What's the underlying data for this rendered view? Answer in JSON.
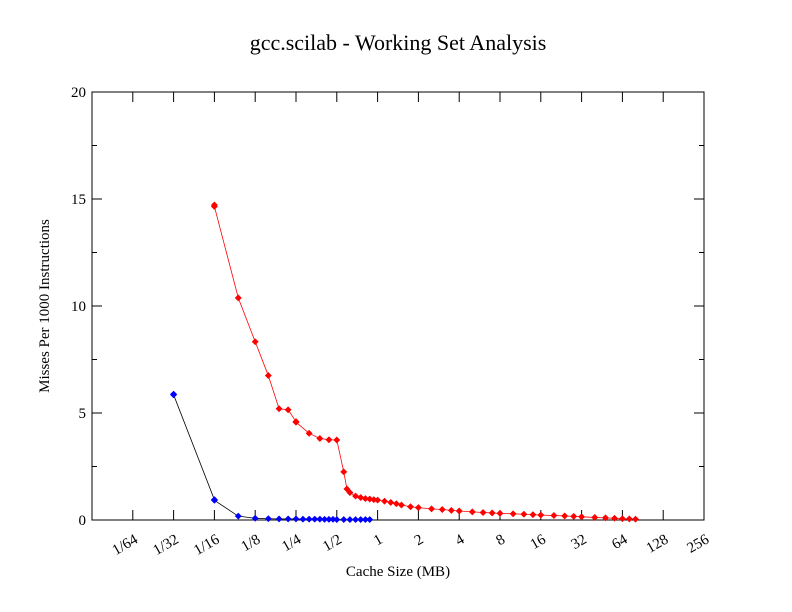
{
  "chart_data": {
    "type": "line",
    "title": "gcc.scilab - Working Set Analysis",
    "xlabel": "Cache Size (MB)",
    "ylabel": "Misses Per 1000 Instructions",
    "x_scale": "log2",
    "xlim": [
      0.0078125,
      256
    ],
    "ylim": [
      0,
      20
    ],
    "y_ticks": [
      0,
      5,
      10,
      15,
      20
    ],
    "x_ticks": [
      {
        "value": 0.015625,
        "label": "1/64"
      },
      {
        "value": 0.03125,
        "label": "1/32"
      },
      {
        "value": 0.0625,
        "label": "1/16"
      },
      {
        "value": 0.125,
        "label": "1/8"
      },
      {
        "value": 0.25,
        "label": "1/4"
      },
      {
        "value": 0.5,
        "label": "1/2"
      },
      {
        "value": 1,
        "label": "1"
      },
      {
        "value": 2,
        "label": "2"
      },
      {
        "value": 4,
        "label": "4"
      },
      {
        "value": 8,
        "label": "8"
      },
      {
        "value": 16,
        "label": "16"
      },
      {
        "value": 32,
        "label": "32"
      },
      {
        "value": 64,
        "label": "64"
      },
      {
        "value": 128,
        "label": "128"
      },
      {
        "value": 256,
        "label": "256"
      }
    ],
    "grid": false,
    "series": [
      {
        "color": "#ff0000",
        "marker": "diamond",
        "x": [
          0.0625,
          0.0625,
          0.09375,
          0.125,
          0.15625,
          0.1875,
          0.21875,
          0.25,
          0.25,
          0.3125,
          0.375,
          0.4375,
          0.5,
          0.5625,
          0.59375,
          0.625,
          0.6875,
          0.75,
          0.8125,
          0.875,
          0.9375,
          1,
          1.125,
          1.25,
          1.375,
          1.5,
          1.75,
          2,
          2.5,
          3,
          3.5,
          4,
          5,
          6,
          7,
          8,
          10,
          12,
          14,
          16,
          20,
          24,
          28,
          32,
          40,
          48,
          56,
          64,
          72,
          80
        ],
        "y": [
          14.72,
          14.65,
          10.38,
          8.33,
          6.75,
          5.2,
          5.15,
          4.6,
          4.57,
          4.05,
          3.81,
          3.75,
          3.74,
          2.25,
          1.45,
          1.28,
          1.12,
          1.05,
          1.0,
          0.98,
          0.95,
          0.93,
          0.88,
          0.82,
          0.76,
          0.7,
          0.62,
          0.58,
          0.52,
          0.49,
          0.45,
          0.42,
          0.38,
          0.35,
          0.33,
          0.31,
          0.29,
          0.27,
          0.25,
          0.23,
          0.21,
          0.19,
          0.17,
          0.15,
          0.12,
          0.1,
          0.08,
          0.06,
          0.05,
          0.04
        ]
      },
      {
        "color": "#0000ff",
        "marker": "diamond",
        "x": [
          0.03125,
          0.03125,
          0.0625,
          0.0625,
          0.09375,
          0.125,
          0.15625,
          0.1875,
          0.21875,
          0.25,
          0.28125,
          0.3125,
          0.34375,
          0.375,
          0.40625,
          0.4375,
          0.46875,
          0.5,
          0.5625,
          0.625,
          0.6875,
          0.75,
          0.8125,
          0.875
        ],
        "y": [
          5.88,
          5.85,
          0.95,
          0.92,
          0.18,
          0.08,
          0.06,
          0.05,
          0.05,
          0.05,
          0.04,
          0.04,
          0.04,
          0.04,
          0.03,
          0.03,
          0.03,
          0.02,
          0.02,
          0.02,
          0.02,
          0.02,
          0.02,
          0.02
        ]
      }
    ]
  }
}
